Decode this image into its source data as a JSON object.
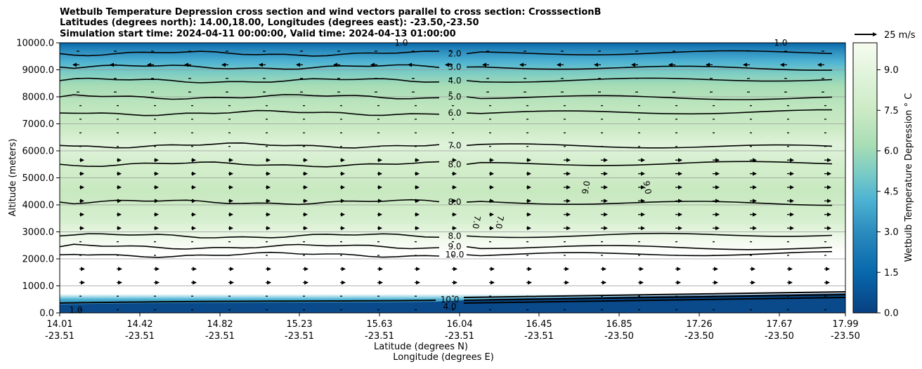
{
  "chart_data": {
    "type": "heatmap",
    "title_lines": [
      "Wetbulb Temperature Depression cross section and wind vectors parallel to cross section: CrosssectionB",
      "Latitudes (degrees north): 14.00,18.00, Longitudes (degrees east): -23.50,-23.50",
      "Simulation start time: 2024-04-11 00:00:00, Valid time: 2024-04-13 01:00:00"
    ],
    "xlabel_line1": "Latitude (degrees N)",
    "xlabel_line2": "Longitude (degrees E)",
    "ylabel": "Altitude (meters)",
    "x_range": [
      14.01,
      17.99
    ],
    "ylim": [
      0,
      10000
    ],
    "x_ticks": [
      {
        "lat": "14.01",
        "lon": "-23.51"
      },
      {
        "lat": "14.42",
        "lon": "-23.51"
      },
      {
        "lat": "14.82",
        "lon": "-23.51"
      },
      {
        "lat": "15.23",
        "lon": "-23.51"
      },
      {
        "lat": "15.63",
        "lon": "-23.51"
      },
      {
        "lat": "16.04",
        "lon": "-23.51"
      },
      {
        "lat": "16.45",
        "lon": "-23.51"
      },
      {
        "lat": "16.85",
        "lon": "-23.50"
      },
      {
        "lat": "17.26",
        "lon": "-23.50"
      },
      {
        "lat": "17.67",
        "lon": "-23.50"
      },
      {
        "lat": "17.99",
        "lon": "-23.50"
      }
    ],
    "y_ticks": [
      "0.0",
      "1000.0",
      "2000.0",
      "3000.0",
      "4000.0",
      "5000.0",
      "6000.0",
      "7000.0",
      "8000.0",
      "9000.0",
      "10000.0"
    ],
    "y_tick_values": [
      0,
      1000,
      2000,
      3000,
      4000,
      5000,
      6000,
      7000,
      8000,
      9000,
      10000
    ],
    "grid": "horizontal",
    "colorbar": {
      "label": "Wetbulb Temperature Depression ° C",
      "range": [
        0,
        10
      ],
      "ticks": [
        "0.0",
        "1.5",
        "3.0",
        "4.5",
        "6.0",
        "7.5",
        "9.0"
      ],
      "tick_values": [
        0,
        1.5,
        3.0,
        4.5,
        6.0,
        7.5,
        9.0
      ]
    },
    "quiver_key": {
      "label": "25 m/s",
      "speed": 25
    },
    "contours": [
      {
        "level_label": "2.0",
        "alt": 9600
      },
      {
        "level_label": "3.0",
        "alt": 9100
      },
      {
        "level_label": "4.0",
        "alt": 8600
      },
      {
        "level_label": "5.0",
        "alt": 8000
      },
      {
        "level_label": "6.0",
        "alt": 7400
      },
      {
        "level_label": "7.0",
        "alt": 6200
      },
      {
        "level_label": "8.0",
        "alt": 5500
      },
      {
        "level_label": "8.0",
        "alt": 4100
      },
      {
        "level_label": "8.0",
        "alt": 2850
      },
      {
        "level_label": "9.0",
        "alt": 2450
      },
      {
        "level_label": "10.0",
        "alt": 2150
      }
    ],
    "other_contour_labels": [
      "1.0",
      "1.0",
      "9.0",
      "9.0",
      "7.0",
      "7.0",
      "10.0",
      "4.0",
      "1.0"
    ]
  },
  "colors": {
    "dark_blue": "#08589e",
    "mid_blue": "#2b8cbe",
    "light_green": "#ccebc5",
    "pale": "#f7fcf0"
  }
}
